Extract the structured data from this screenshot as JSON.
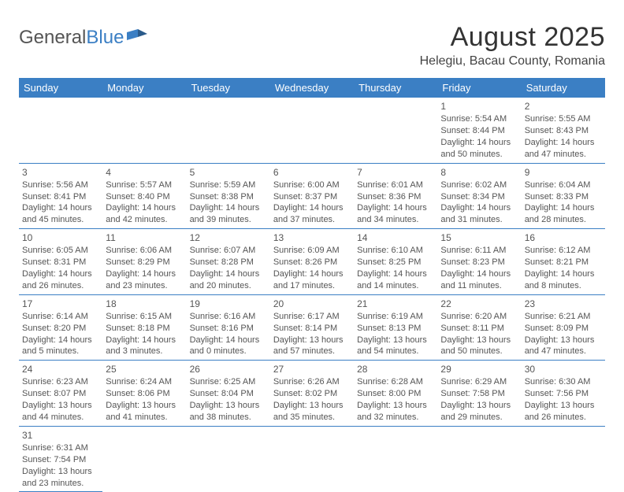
{
  "brand": {
    "part1": "General",
    "part2": "Blue"
  },
  "title": "August 2025",
  "location": "Helegiu, Bacau County, Romania",
  "header_bg": "#3b7fc4",
  "weekdays": [
    "Sunday",
    "Monday",
    "Tuesday",
    "Wednesday",
    "Thursday",
    "Friday",
    "Saturday"
  ],
  "weeks": [
    [
      null,
      null,
      null,
      null,
      null,
      {
        "n": "1",
        "sr": "Sunrise: 5:54 AM",
        "ss": "Sunset: 8:44 PM",
        "d1": "Daylight: 14 hours",
        "d2": "and 50 minutes."
      },
      {
        "n": "2",
        "sr": "Sunrise: 5:55 AM",
        "ss": "Sunset: 8:43 PM",
        "d1": "Daylight: 14 hours",
        "d2": "and 47 minutes."
      }
    ],
    [
      {
        "n": "3",
        "sr": "Sunrise: 5:56 AM",
        "ss": "Sunset: 8:41 PM",
        "d1": "Daylight: 14 hours",
        "d2": "and 45 minutes."
      },
      {
        "n": "4",
        "sr": "Sunrise: 5:57 AM",
        "ss": "Sunset: 8:40 PM",
        "d1": "Daylight: 14 hours",
        "d2": "and 42 minutes."
      },
      {
        "n": "5",
        "sr": "Sunrise: 5:59 AM",
        "ss": "Sunset: 8:38 PM",
        "d1": "Daylight: 14 hours",
        "d2": "and 39 minutes."
      },
      {
        "n": "6",
        "sr": "Sunrise: 6:00 AM",
        "ss": "Sunset: 8:37 PM",
        "d1": "Daylight: 14 hours",
        "d2": "and 37 minutes."
      },
      {
        "n": "7",
        "sr": "Sunrise: 6:01 AM",
        "ss": "Sunset: 8:36 PM",
        "d1": "Daylight: 14 hours",
        "d2": "and 34 minutes."
      },
      {
        "n": "8",
        "sr": "Sunrise: 6:02 AM",
        "ss": "Sunset: 8:34 PM",
        "d1": "Daylight: 14 hours",
        "d2": "and 31 minutes."
      },
      {
        "n": "9",
        "sr": "Sunrise: 6:04 AM",
        "ss": "Sunset: 8:33 PM",
        "d1": "Daylight: 14 hours",
        "d2": "and 28 minutes."
      }
    ],
    [
      {
        "n": "10",
        "sr": "Sunrise: 6:05 AM",
        "ss": "Sunset: 8:31 PM",
        "d1": "Daylight: 14 hours",
        "d2": "and 26 minutes."
      },
      {
        "n": "11",
        "sr": "Sunrise: 6:06 AM",
        "ss": "Sunset: 8:29 PM",
        "d1": "Daylight: 14 hours",
        "d2": "and 23 minutes."
      },
      {
        "n": "12",
        "sr": "Sunrise: 6:07 AM",
        "ss": "Sunset: 8:28 PM",
        "d1": "Daylight: 14 hours",
        "d2": "and 20 minutes."
      },
      {
        "n": "13",
        "sr": "Sunrise: 6:09 AM",
        "ss": "Sunset: 8:26 PM",
        "d1": "Daylight: 14 hours",
        "d2": "and 17 minutes."
      },
      {
        "n": "14",
        "sr": "Sunrise: 6:10 AM",
        "ss": "Sunset: 8:25 PM",
        "d1": "Daylight: 14 hours",
        "d2": "and 14 minutes."
      },
      {
        "n": "15",
        "sr": "Sunrise: 6:11 AM",
        "ss": "Sunset: 8:23 PM",
        "d1": "Daylight: 14 hours",
        "d2": "and 11 minutes."
      },
      {
        "n": "16",
        "sr": "Sunrise: 6:12 AM",
        "ss": "Sunset: 8:21 PM",
        "d1": "Daylight: 14 hours",
        "d2": "and 8 minutes."
      }
    ],
    [
      {
        "n": "17",
        "sr": "Sunrise: 6:14 AM",
        "ss": "Sunset: 8:20 PM",
        "d1": "Daylight: 14 hours",
        "d2": "and 5 minutes."
      },
      {
        "n": "18",
        "sr": "Sunrise: 6:15 AM",
        "ss": "Sunset: 8:18 PM",
        "d1": "Daylight: 14 hours",
        "d2": "and 3 minutes."
      },
      {
        "n": "19",
        "sr": "Sunrise: 6:16 AM",
        "ss": "Sunset: 8:16 PM",
        "d1": "Daylight: 14 hours",
        "d2": "and 0 minutes."
      },
      {
        "n": "20",
        "sr": "Sunrise: 6:17 AM",
        "ss": "Sunset: 8:14 PM",
        "d1": "Daylight: 13 hours",
        "d2": "and 57 minutes."
      },
      {
        "n": "21",
        "sr": "Sunrise: 6:19 AM",
        "ss": "Sunset: 8:13 PM",
        "d1": "Daylight: 13 hours",
        "d2": "and 54 minutes."
      },
      {
        "n": "22",
        "sr": "Sunrise: 6:20 AM",
        "ss": "Sunset: 8:11 PM",
        "d1": "Daylight: 13 hours",
        "d2": "and 50 minutes."
      },
      {
        "n": "23",
        "sr": "Sunrise: 6:21 AM",
        "ss": "Sunset: 8:09 PM",
        "d1": "Daylight: 13 hours",
        "d2": "and 47 minutes."
      }
    ],
    [
      {
        "n": "24",
        "sr": "Sunrise: 6:23 AM",
        "ss": "Sunset: 8:07 PM",
        "d1": "Daylight: 13 hours",
        "d2": "and 44 minutes."
      },
      {
        "n": "25",
        "sr": "Sunrise: 6:24 AM",
        "ss": "Sunset: 8:06 PM",
        "d1": "Daylight: 13 hours",
        "d2": "and 41 minutes."
      },
      {
        "n": "26",
        "sr": "Sunrise: 6:25 AM",
        "ss": "Sunset: 8:04 PM",
        "d1": "Daylight: 13 hours",
        "d2": "and 38 minutes."
      },
      {
        "n": "27",
        "sr": "Sunrise: 6:26 AM",
        "ss": "Sunset: 8:02 PM",
        "d1": "Daylight: 13 hours",
        "d2": "and 35 minutes."
      },
      {
        "n": "28",
        "sr": "Sunrise: 6:28 AM",
        "ss": "Sunset: 8:00 PM",
        "d1": "Daylight: 13 hours",
        "d2": "and 32 minutes."
      },
      {
        "n": "29",
        "sr": "Sunrise: 6:29 AM",
        "ss": "Sunset: 7:58 PM",
        "d1": "Daylight: 13 hours",
        "d2": "and 29 minutes."
      },
      {
        "n": "30",
        "sr": "Sunrise: 6:30 AM",
        "ss": "Sunset: 7:56 PM",
        "d1": "Daylight: 13 hours",
        "d2": "and 26 minutes."
      }
    ],
    [
      {
        "n": "31",
        "sr": "Sunrise: 6:31 AM",
        "ss": "Sunset: 7:54 PM",
        "d1": "Daylight: 13 hours",
        "d2": "and 23 minutes."
      },
      null,
      null,
      null,
      null,
      null,
      null
    ]
  ]
}
